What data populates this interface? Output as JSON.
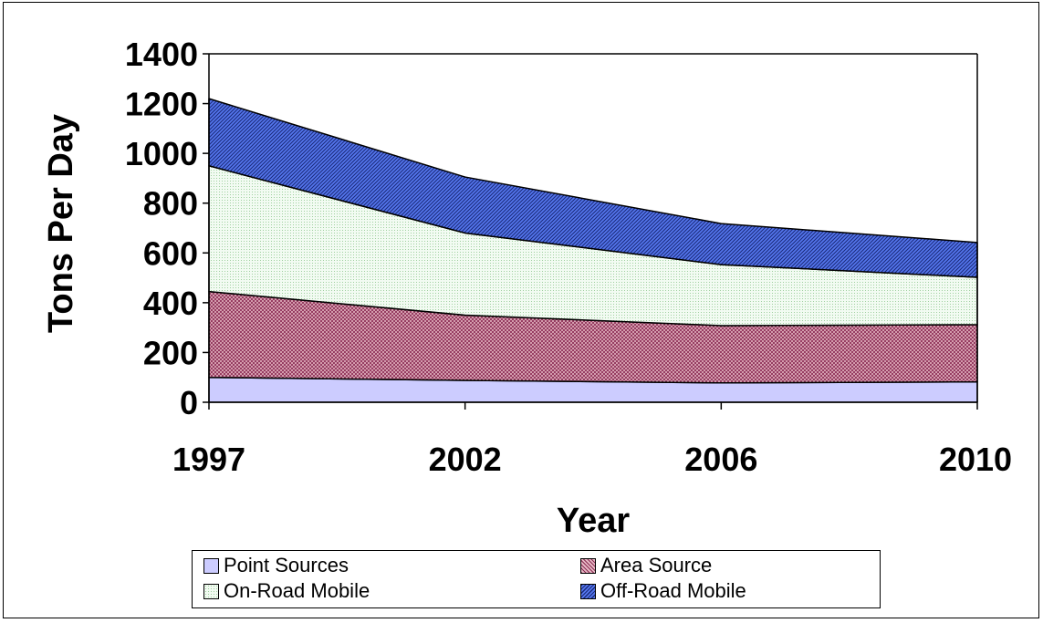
{
  "chart_data": {
    "type": "area",
    "stacked": true,
    "xlabel": "Year",
    "ylabel": "Tons Per Day",
    "ylim": [
      0,
      1400
    ],
    "yticks": [
      0,
      200,
      400,
      600,
      800,
      1000,
      1200,
      1400
    ],
    "categories": [
      "1997",
      "2002",
      "2006",
      "2010"
    ],
    "grid": false,
    "legend_position": "bottom",
    "series": [
      {
        "name": "Point Sources",
        "values": [
          100,
          88,
          78,
          82
        ],
        "color": "#ccccff",
        "pattern": "none"
      },
      {
        "name": "Area Source",
        "values": [
          345,
          262,
          230,
          230
        ],
        "color": "#993366",
        "pattern": "diagonal-crosshatch"
      },
      {
        "name": "On-Road Mobile",
        "values": [
          505,
          330,
          245,
          190
        ],
        "color": "#ccffcc",
        "pattern": "fine-dots"
      },
      {
        "name": "Off-Road Mobile",
        "values": [
          270,
          225,
          165,
          140
        ],
        "color": "#3366ff",
        "pattern": "dark-diagonal"
      }
    ]
  }
}
